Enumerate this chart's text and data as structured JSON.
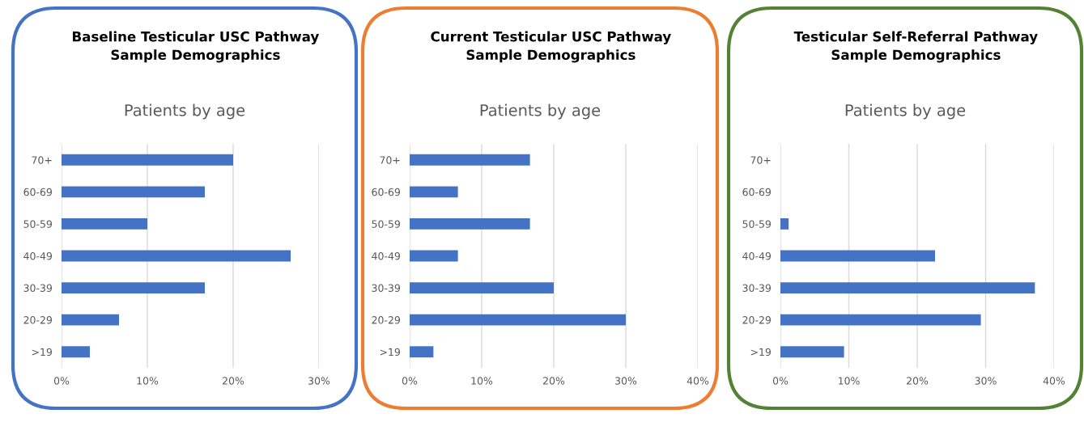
{
  "chart_data": [
    {
      "type": "bar",
      "orientation": "horizontal",
      "title": "Baseline Testicular USC Pathway\nSample Demographics",
      "subtitle": "Patients by age",
      "categories": [
        "70+",
        "60-69",
        "50-59",
        "40-49",
        "30-39",
        "20-29",
        ">19"
      ],
      "series": [
        {
          "color": "#4472c4",
          "values": [
            20,
            16.7,
            10,
            26.7,
            16.7,
            6.7,
            3.3
          ]
        }
      ],
      "xlim": [
        0,
        30
      ],
      "xticks": [
        {
          "value": 0,
          "label": "0%"
        },
        {
          "value": 10,
          "label": "10%"
        },
        {
          "value": 20,
          "label": "20%"
        },
        {
          "value": 30,
          "label": "30%"
        }
      ],
      "grid": "x",
      "legend": false
    },
    {
      "type": "bar",
      "orientation": "horizontal",
      "title": "Current Testicular USC Pathway\nSample Demographics",
      "subtitle": "Patients by age",
      "categories": [
        "70+",
        "60-69",
        "50-59",
        "40-49",
        "30-39",
        "20-29",
        ">19"
      ],
      "series": [
        {
          "color": "#4472c4",
          "values": [
            16.7,
            6.7,
            16.7,
            6.7,
            20,
            30,
            3.3
          ]
        }
      ],
      "xlim": [
        0,
        40
      ],
      "xticks": [
        {
          "value": 0,
          "label": "0%"
        },
        {
          "value": 10,
          "label": "10%"
        },
        {
          "value": 20,
          "label": "20%"
        },
        {
          "value": 30,
          "label": "30%"
        },
        {
          "value": 40,
          "label": "40%"
        }
      ],
      "grid": "x",
      "legend": false
    },
    {
      "type": "bar",
      "orientation": "horizontal",
      "title": "Testicular Self-Referral Pathway\nSample Demographics",
      "subtitle": "Patients by age",
      "categories": [
        "70+",
        "60-69",
        "50-59",
        "40-49",
        "30-39",
        "20-29",
        ">19"
      ],
      "series": [
        {
          "color": "#4472c4",
          "values": [
            0,
            0,
            1.2,
            22.6,
            37.2,
            29.3,
            9.3
          ]
        }
      ],
      "xlim": [
        0,
        40
      ],
      "xticks": [
        {
          "value": 0,
          "label": "0%"
        },
        {
          "value": 10,
          "label": "10%"
        },
        {
          "value": 20,
          "label": "20%"
        },
        {
          "value": 30,
          "label": "30%"
        },
        {
          "value": 40,
          "label": "40%"
        }
      ],
      "grid": "x",
      "legend": false
    }
  ]
}
